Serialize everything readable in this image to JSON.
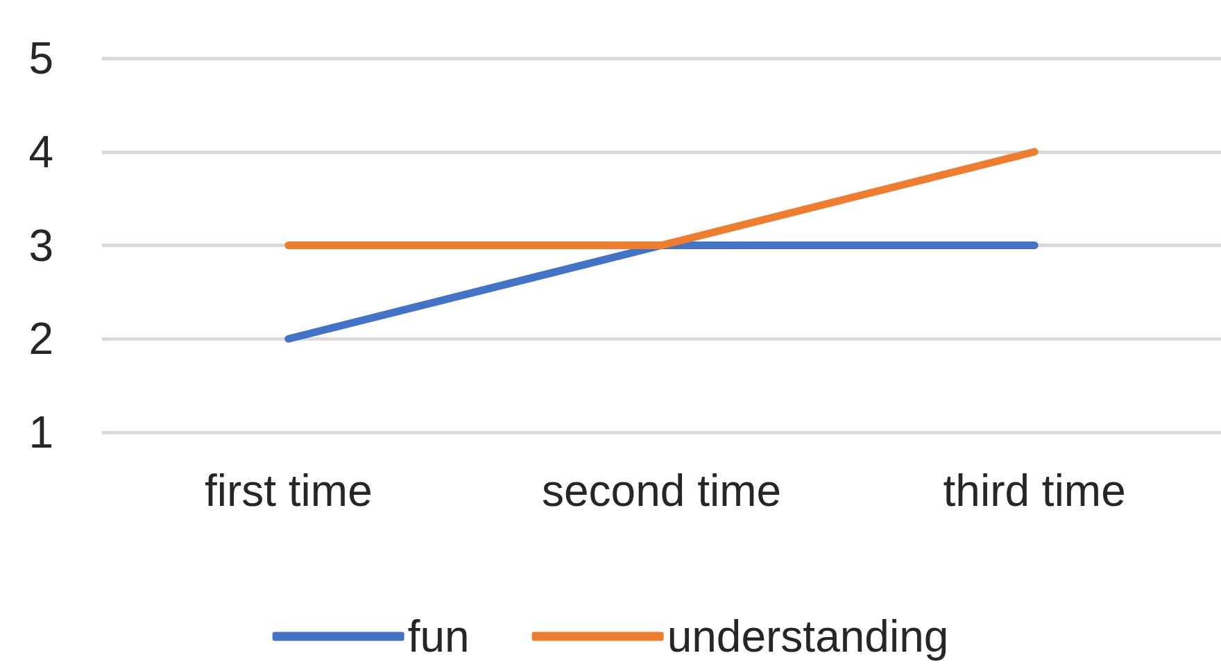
{
  "chart_data": {
    "type": "line",
    "categories": [
      "first time",
      "second time",
      "third time"
    ],
    "series": [
      {
        "name": "fun",
        "color": "#4472c4",
        "values": [
          2,
          3,
          3
        ]
      },
      {
        "name": "understanding",
        "color": "#ed7d31",
        "values": [
          3,
          3,
          4
        ]
      }
    ],
    "ylim": [
      1,
      5
    ],
    "yticks": [
      1,
      2,
      3,
      4,
      5
    ],
    "grid": "y",
    "legend": "bottom",
    "marker": "none",
    "line_style": "solid"
  }
}
